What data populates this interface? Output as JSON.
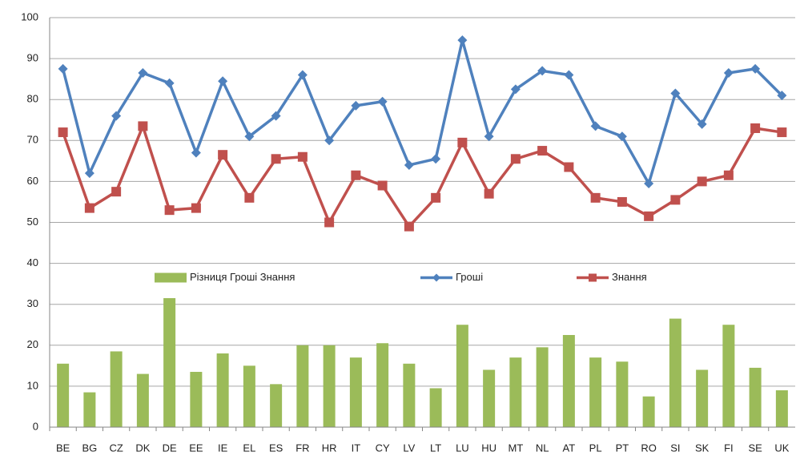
{
  "chart_data": {
    "type": "combo",
    "categories": [
      "BE",
      "BG",
      "CZ",
      "DK",
      "DE",
      "EE",
      "IE",
      "EL",
      "ES",
      "FR",
      "HR",
      "IT",
      "CY",
      "LV",
      "LT",
      "LU",
      "HU",
      "MT",
      "NL",
      "AT",
      "PL",
      "PT",
      "RO",
      "SI",
      "SK",
      "FI",
      "SE",
      "UK"
    ],
    "series": [
      {
        "name": "Різниця Гроші Знання",
        "type": "bar",
        "color": "#9bbb59",
        "values": [
          15.5,
          8.5,
          18.5,
          13,
          31.5,
          13.5,
          18,
          15,
          10.5,
          20,
          20,
          17,
          20.5,
          15.5,
          9.5,
          25,
          14,
          17,
          19.5,
          22.5,
          17,
          16,
          7.5,
          26.5,
          14,
          25,
          14.5,
          9
        ]
      },
      {
        "name": "Гроші",
        "type": "line",
        "marker": "diamond",
        "color": "#4f81bd",
        "values": [
          87.5,
          62,
          76,
          86.5,
          84,
          67,
          84.5,
          71,
          76,
          86,
          70,
          78.5,
          79.5,
          64,
          65.5,
          94.5,
          71,
          82.5,
          87,
          86,
          73.5,
          71,
          59.5,
          81.5,
          74,
          86.5,
          87.5,
          81
        ]
      },
      {
        "name": "Знання",
        "type": "line",
        "marker": "square",
        "color": "#c0504d",
        "values": [
          72,
          53.5,
          57.5,
          73.5,
          53,
          53.5,
          66.5,
          56,
          65.5,
          66,
          50,
          61.5,
          59,
          49,
          56,
          69.5,
          57,
          65.5,
          67.5,
          63.5,
          56,
          55,
          51.5,
          55.5,
          60,
          61.5,
          73,
          72
        ]
      }
    ],
    "ylim": [
      0,
      100
    ],
    "yticks": [
      0,
      10,
      20,
      30,
      40,
      50,
      60,
      70,
      80,
      90,
      100
    ],
    "grid": true,
    "legend": "center"
  }
}
